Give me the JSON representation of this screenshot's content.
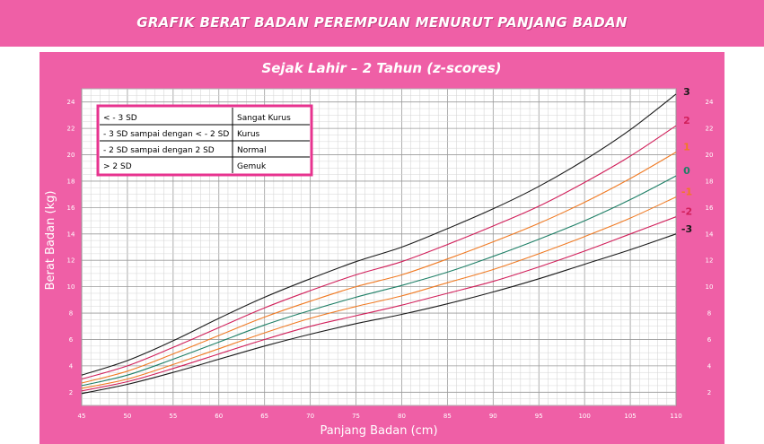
{
  "header": {
    "title": "GRAFIK BERAT BADAN PEREMPUAN MENURUT PANJANG BADAN",
    "subtitle": "Sejak Lahir – 2 Tahun (z-scores)"
  },
  "legend_table": {
    "rows": [
      {
        "range": "< - 3 SD",
        "status": "Sangat Kurus"
      },
      {
        "range": "- 3 SD sampai dengan < - 2 SD",
        "status": "Kurus"
      },
      {
        "range": "- 2 SD sampai dengan 2 SD",
        "status": "Normal"
      },
      {
        "range": "> 2 SD",
        "status": "Gemuk"
      }
    ]
  },
  "colors": {
    "banner": "#ef5fa6",
    "grid_bg": "#ffffff",
    "grid_line": "#b9b9b9",
    "table_border": "#e7338f"
  },
  "chart_data": {
    "type": "line",
    "title": "Sejak Lahir – 2 Tahun (z-scores)",
    "xlabel": "Panjang Badan (cm)",
    "ylabel": "Berat Badan (kg)",
    "xlim": [
      45,
      110
    ],
    "ylim": [
      1,
      25
    ],
    "x_ticks": [
      "45",
      "50",
      "55",
      "60",
      "65",
      "70",
      "75",
      "80",
      "85",
      "90",
      "95",
      "100",
      "105",
      "110"
    ],
    "y_ticks": [
      "2",
      "4",
      "6",
      "8",
      "10",
      "12",
      "14",
      "16",
      "18",
      "20",
      "22",
      "24"
    ],
    "grid": true,
    "x": [
      45,
      50,
      55,
      60,
      65,
      70,
      75,
      80,
      85,
      90,
      95,
      100,
      105,
      110
    ],
    "series": [
      {
        "name": "3",
        "color": "#1a1a1a",
        "values": [
          3.3,
          4.4,
          5.9,
          7.6,
          9.2,
          10.6,
          11.9,
          13.0,
          14.4,
          15.9,
          17.6,
          19.6,
          21.9,
          24.6
        ]
      },
      {
        "name": "2",
        "color": "#d11f5a",
        "values": [
          3.0,
          4.0,
          5.4,
          6.9,
          8.4,
          9.7,
          10.9,
          11.9,
          13.2,
          14.6,
          16.1,
          17.9,
          19.9,
          22.2
        ]
      },
      {
        "name": "1",
        "color": "#f07a23",
        "values": [
          2.7,
          3.6,
          4.9,
          6.3,
          7.7,
          8.9,
          10.0,
          10.9,
          12.1,
          13.4,
          14.8,
          16.4,
          18.2,
          20.2
        ]
      },
      {
        "name": "0",
        "color": "#1e7f66",
        "values": [
          2.5,
          3.3,
          4.5,
          5.8,
          7.1,
          8.2,
          9.2,
          10.1,
          11.1,
          12.3,
          13.6,
          15.0,
          16.6,
          18.4
        ]
      },
      {
        "name": "-1",
        "color": "#f07a23",
        "values": [
          2.3,
          3.0,
          4.1,
          5.3,
          6.5,
          7.6,
          8.5,
          9.3,
          10.3,
          11.3,
          12.5,
          13.8,
          15.2,
          16.8
        ]
      },
      {
        "name": "-2",
        "color": "#d11f5a",
        "values": [
          2.1,
          2.8,
          3.8,
          4.9,
          6.0,
          7.0,
          7.8,
          8.6,
          9.5,
          10.4,
          11.5,
          12.7,
          14.0,
          15.3
        ]
      },
      {
        "name": "-3",
        "color": "#1a1a1a",
        "values": [
          1.9,
          2.6,
          3.5,
          4.5,
          5.5,
          6.4,
          7.2,
          7.9,
          8.7,
          9.6,
          10.6,
          11.7,
          12.8,
          14.0
        ]
      }
    ]
  }
}
